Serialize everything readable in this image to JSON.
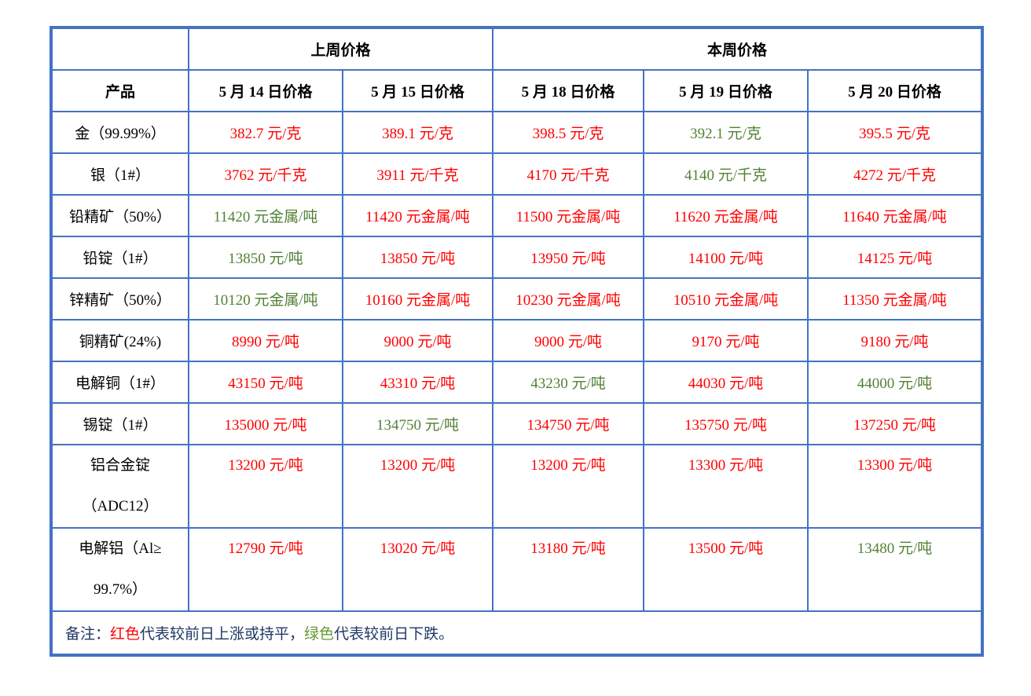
{
  "theme": {
    "border_blue": "#4472C4",
    "red": "#FF0000",
    "green": "#538135",
    "footer_green": "#669933",
    "navy": "#1F3864",
    "header_text": "#000000",
    "background": "#FFFFFF"
  },
  "header": {
    "product_label": "产品",
    "group_last_week": "上周价格",
    "group_this_week": "本周价格",
    "date_columns": [
      "5 月 14 日价格",
      "5 月 15 日价格",
      "5 月 18 日价格",
      "5 月 19 日价格",
      "5 月 20 日价格"
    ]
  },
  "rows": [
    {
      "product": "金（99.99%）",
      "cells": [
        {
          "text": "382.7 元/克",
          "color": "red"
        },
        {
          "text": "389.1 元/克",
          "color": "red"
        },
        {
          "text": "398.5 元/克",
          "color": "red"
        },
        {
          "text": "392.1 元/克",
          "color": "green"
        },
        {
          "text": "395.5 元/克",
          "color": "red"
        }
      ]
    },
    {
      "product": "银（1#）",
      "cells": [
        {
          "text": "3762 元/千克",
          "color": "red"
        },
        {
          "text": "3911 元/千克",
          "color": "red"
        },
        {
          "text": "4170 元/千克",
          "color": "red"
        },
        {
          "text": "4140 元/千克",
          "color": "green"
        },
        {
          "text": "4272 元/千克",
          "color": "red"
        }
      ]
    },
    {
      "product": "铅精矿（50%）",
      "cells": [
        {
          "text": "11420 元金属/吨",
          "color": "green"
        },
        {
          "text": "11420 元金属/吨",
          "color": "red"
        },
        {
          "text": "11500 元金属/吨",
          "color": "red"
        },
        {
          "text": "11620 元金属/吨",
          "color": "red"
        },
        {
          "text": "11640 元金属/吨",
          "color": "red"
        }
      ]
    },
    {
      "product": "铅锭（1#）",
      "cells": [
        {
          "text": "13850 元/吨",
          "color": "green"
        },
        {
          "text": "13850 元/吨",
          "color": "red"
        },
        {
          "text": "13950 元/吨",
          "color": "red"
        },
        {
          "text": "14100 元/吨",
          "color": "red"
        },
        {
          "text": "14125 元/吨",
          "color": "red"
        }
      ]
    },
    {
      "product": "锌精矿（50%）",
      "cells": [
        {
          "text": "10120 元金属/吨",
          "color": "green"
        },
        {
          "text": "10160 元金属/吨",
          "color": "red"
        },
        {
          "text": "10230 元金属/吨",
          "color": "red"
        },
        {
          "text": "10510 元金属/吨",
          "color": "red"
        },
        {
          "text": "11350 元金属/吨",
          "color": "red"
        }
      ]
    },
    {
      "product": "铜精矿(24%)",
      "cells": [
        {
          "text": "8990 元/吨",
          "color": "red"
        },
        {
          "text": "9000 元/吨",
          "color": "red"
        },
        {
          "text": "9000 元/吨",
          "color": "red"
        },
        {
          "text": "9170 元/吨",
          "color": "red"
        },
        {
          "text": "9180 元/吨",
          "color": "red"
        }
      ]
    },
    {
      "product": "电解铜（1#）",
      "cells": [
        {
          "text": "43150 元/吨",
          "color": "red"
        },
        {
          "text": "43310 元/吨",
          "color": "red"
        },
        {
          "text": "43230 元/吨",
          "color": "green"
        },
        {
          "text": "44030 元/吨",
          "color": "red"
        },
        {
          "text": "44000 元/吨",
          "color": "green"
        }
      ]
    },
    {
      "product": "锡锭（1#）",
      "cells": [
        {
          "text": "135000 元/吨",
          "color": "red"
        },
        {
          "text": "134750 元/吨",
          "color": "green"
        },
        {
          "text": "134750 元/吨",
          "color": "red"
        },
        {
          "text": "135750 元/吨",
          "color": "red"
        },
        {
          "text": "137250 元/吨",
          "color": "red"
        }
      ]
    },
    {
      "product": "铝合金锭\n（ADC12）",
      "tall": true,
      "cells": [
        {
          "text": "13200 元/吨",
          "color": "red"
        },
        {
          "text": "13200 元/吨",
          "color": "red"
        },
        {
          "text": "13200 元/吨",
          "color": "red"
        },
        {
          "text": "13300 元/吨",
          "color": "red"
        },
        {
          "text": "13300 元/吨",
          "color": "red"
        }
      ]
    },
    {
      "product": "电解铝（Al≥\n99.7%）",
      "tall": true,
      "cells": [
        {
          "text": "12790 元/吨",
          "color": "red"
        },
        {
          "text": "13020 元/吨",
          "color": "red"
        },
        {
          "text": "13180 元/吨",
          "color": "red"
        },
        {
          "text": "13500 元/吨",
          "color": "red"
        },
        {
          "text": "13480 元/吨",
          "color": "green"
        }
      ]
    }
  ],
  "footer": {
    "segments": [
      {
        "text": "备注：",
        "color": "navy"
      },
      {
        "text": "红色",
        "color": "red"
      },
      {
        "text": "代表较前日上涨或持平，",
        "color": "navy"
      },
      {
        "text": "绿色",
        "color": "footer-green"
      },
      {
        "text": "代表较前日下跌。",
        "color": "navy"
      }
    ]
  }
}
